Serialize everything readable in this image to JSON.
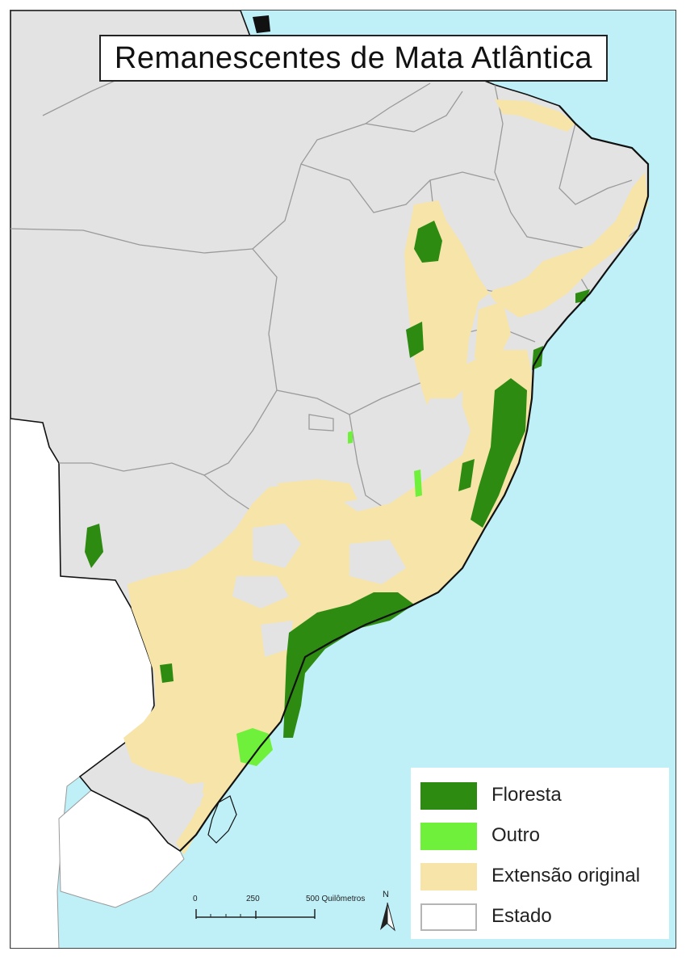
{
  "map": {
    "title": "Remanescentes de Mata Atlântica",
    "colors": {
      "ocean": "#bff0f8",
      "land": "#e3e3e3",
      "outside": "#ffffff",
      "border": "#9a9a9a",
      "coast": "#111111",
      "floresta": "#2e8b12",
      "outro": "#6ff03a",
      "extensao": "#f7e4a8",
      "estado": "#ffffff"
    }
  },
  "legend": {
    "items": [
      {
        "label": "Floresta",
        "color": "#2e8b12"
      },
      {
        "label": "Outro",
        "color": "#6ff03a"
      },
      {
        "label": "Extensão original",
        "color": "#f7e4a8"
      },
      {
        "label": "Estado",
        "color": "#ffffff"
      }
    ]
  },
  "scale_bar": {
    "ticks": [
      "0",
      "250",
      "500 Quilômetros"
    ]
  },
  "north_arrow": {
    "label": "N"
  }
}
